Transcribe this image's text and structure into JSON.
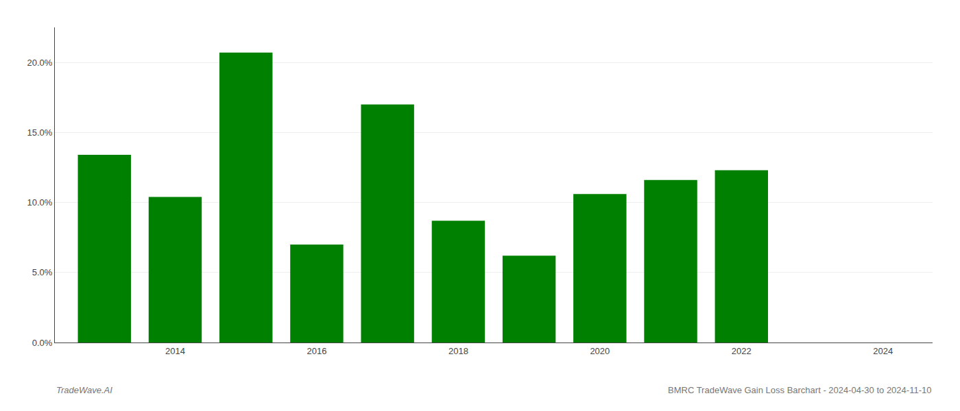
{
  "chart_data": {
    "type": "bar",
    "x": [
      2013,
      2014,
      2015,
      2016,
      2017,
      2018,
      2019,
      2020,
      2021,
      2022
    ],
    "values": [
      0.134,
      0.104,
      0.207,
      0.07,
      0.17,
      0.087,
      0.062,
      0.106,
      0.116,
      0.123
    ],
    "color": "#008000",
    "xlim": [
      2012.3,
      2024.7
    ],
    "xticks": [
      2014,
      2016,
      2018,
      2020,
      2022,
      2024
    ],
    "ylim": [
      0,
      0.225
    ],
    "yticks": [
      {
        "value": 0.0,
        "label": "0.0%"
      },
      {
        "value": 0.05,
        "label": "5.0%"
      },
      {
        "value": 0.1,
        "label": "10.0%"
      },
      {
        "value": 0.15,
        "label": "15.0%"
      },
      {
        "value": 0.2,
        "label": "20.0%"
      }
    ],
    "grid": true,
    "annotations": [
      "TradeWave.AI",
      "BMRC TradeWave Gain Loss Barchart - 2024-04-30 to 2024-11-10"
    ]
  }
}
